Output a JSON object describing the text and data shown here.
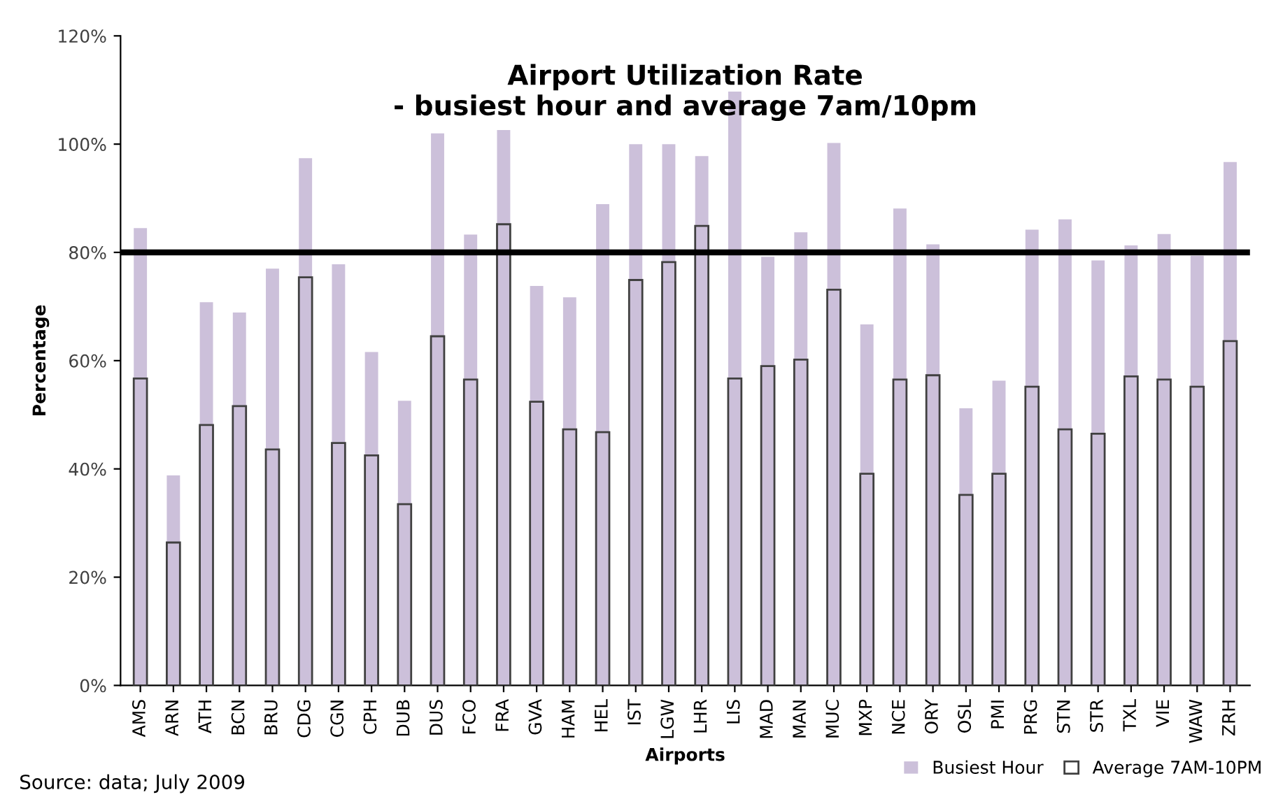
{
  "chart_data": {
    "type": "bar",
    "title": "Airport Utilization Rate\n- busiest hour and average 7am/10pm",
    "xlabel": "Airports",
    "ylabel": "Percentage",
    "categories": [
      "AMS",
      "ARN",
      "ATH",
      "BCN",
      "BRU",
      "CDG",
      "CGN",
      "CPH",
      "DUB",
      "DUS",
      "FCO",
      "FRA",
      "GVA",
      "HAM",
      "HEL",
      "IST",
      "LGW",
      "LHR",
      "LIS",
      "MAD",
      "MAN",
      "MUC",
      "MXP",
      "NCE",
      "ORY",
      "OSL",
      "PMI",
      "PRG",
      "STN",
      "STR",
      "TXL",
      "VIE",
      "WAW",
      "ZRH"
    ],
    "series": [
      {
        "name": "Busiest Hour",
        "color": "#ccc0da",
        "values": [
          84.5,
          38.8,
          70.8,
          68.9,
          77.0,
          97.4,
          77.8,
          61.6,
          52.6,
          102.0,
          83.3,
          102.6,
          73.8,
          71.7,
          88.9,
          100.0,
          100.0,
          97.8,
          109.7,
          79.2,
          83.7,
          100.2,
          66.7,
          88.1,
          81.5,
          51.2,
          56.3,
          84.2,
          86.1,
          78.5,
          81.3,
          83.4,
          79.4,
          96.7
        ]
      },
      {
        "name": "Average 7AM-10PM",
        "color": "#404040",
        "values": [
          56.7,
          26.4,
          48.1,
          51.6,
          43.6,
          75.4,
          44.8,
          42.5,
          33.5,
          64.5,
          56.5,
          85.2,
          52.4,
          47.3,
          46.8,
          74.9,
          78.2,
          84.9,
          56.7,
          59.0,
          60.2,
          73.1,
          39.1,
          56.5,
          57.3,
          35.2,
          39.1,
          55.2,
          47.3,
          46.5,
          57.1,
          56.5,
          55.2,
          63.6
        ]
      }
    ],
    "ylim": [
      0,
      120
    ],
    "yticks": [
      {
        "value": 0,
        "label": "0%"
      },
      {
        "value": 20,
        "label": "20%"
      },
      {
        "value": 40,
        "label": "40%"
      },
      {
        "value": 60,
        "label": "60%"
      },
      {
        "value": 80,
        "label": "80%"
      },
      {
        "value": 100,
        "label": "100%"
      },
      {
        "value": 120,
        "label": "120%"
      }
    ],
    "ref_lines": [
      {
        "axis": "y",
        "value": 80,
        "color": "#000000"
      }
    ],
    "legend": "bottom right",
    "annotations": [
      "Source: data; July 2009"
    ]
  }
}
